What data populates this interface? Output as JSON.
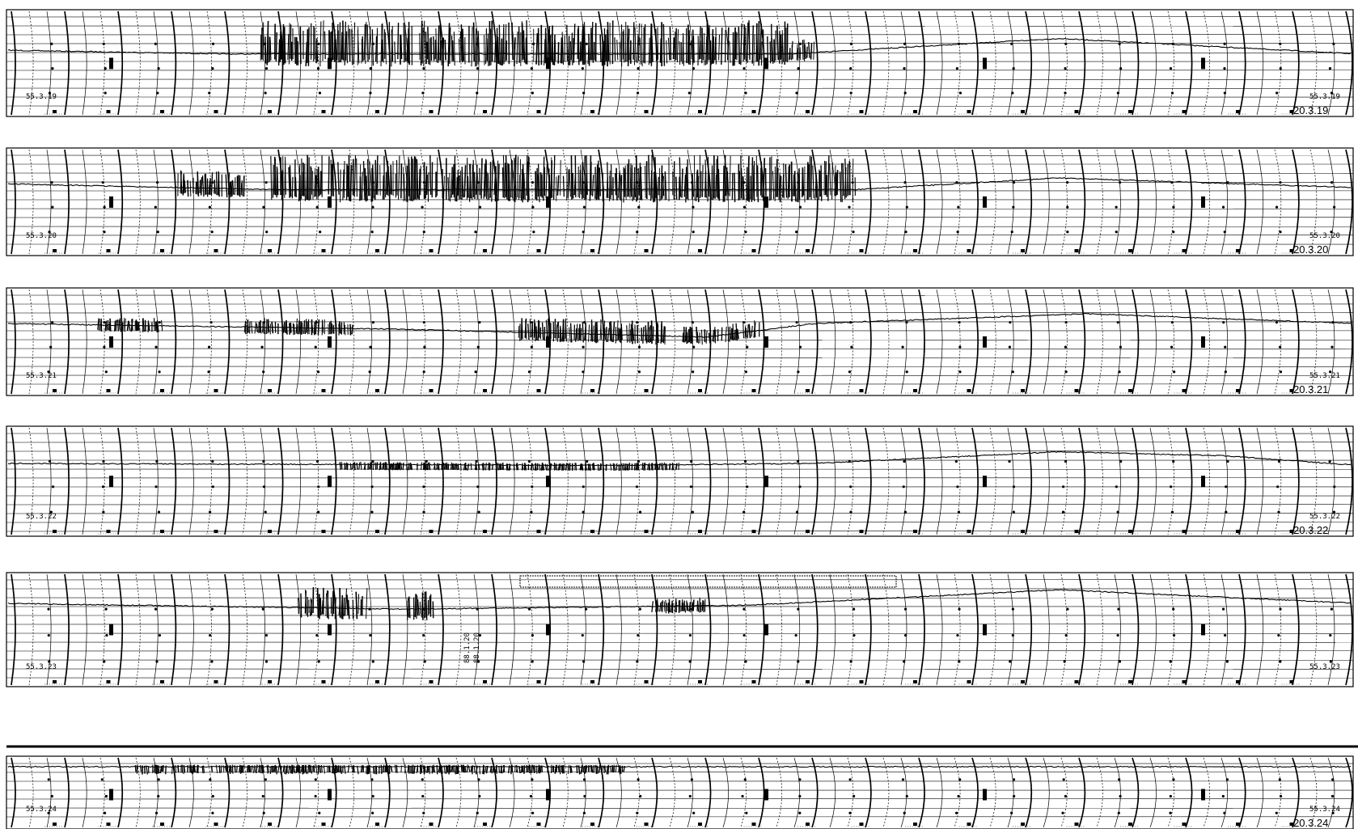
{
  "document": {
    "type": "seismograph drum recording (six strips)",
    "strips": [
      {
        "id": "strip-1",
        "left_label": "55.3.19",
        "right_label": "55.3.19",
        "stamp": "20.3.19",
        "activity": [
          [
            0.19,
            0.58,
            0.95
          ],
          [
            0.58,
            0.6,
            0.4
          ]
        ],
        "drift": [
          [
            0,
            0.0
          ],
          [
            0.17,
            0.1
          ],
          [
            0.58,
            0.1
          ],
          [
            0.78,
            -0.3
          ],
          [
            1,
            0.1
          ]
        ]
      },
      {
        "id": "strip-2",
        "left_label": "55.3.20",
        "right_label": "55.3.20",
        "stamp": "20.3.20",
        "activity": [
          [
            0.13,
            0.18,
            0.5
          ],
          [
            0.2,
            0.63,
            1.0
          ]
        ],
        "drift": [
          [
            0,
            -0.1
          ],
          [
            0.2,
            0.05
          ],
          [
            0.63,
            0.05
          ],
          [
            0.78,
            -0.25
          ],
          [
            1,
            0.0
          ]
        ]
      },
      {
        "id": "strip-3",
        "left_label": "55.3.21",
        "right_label": "55.3.21",
        "stamp": "20.3.21",
        "activity": [
          [
            0.07,
            0.12,
            0.25
          ],
          [
            0.18,
            0.26,
            0.3
          ],
          [
            0.38,
            0.49,
            0.5
          ],
          [
            0.5,
            0.56,
            0.35
          ]
        ],
        "drift": [
          [
            0,
            0.0
          ],
          [
            0.3,
            0.15
          ],
          [
            0.52,
            0.35
          ],
          [
            0.6,
            0.0
          ],
          [
            0.8,
            -0.25
          ],
          [
            1,
            0.0
          ]
        ]
      },
      {
        "id": "strip-4",
        "left_label": "55.3.22",
        "right_label": "55.3.22",
        "stamp": "20.3.22",
        "activity": [
          [
            0.25,
            0.5,
            0.08
          ]
        ],
        "drift": [
          [
            0,
            0.0
          ],
          [
            0.45,
            0.05
          ],
          [
            0.6,
            0.0
          ],
          [
            0.78,
            -0.3
          ],
          [
            0.9,
            -0.2
          ],
          [
            1,
            0.05
          ]
        ]
      },
      {
        "id": "strip-5",
        "left_label": "55.3.23",
        "right_label": "55.3.23",
        "stamp": "",
        "activity": [
          [
            0.22,
            0.27,
            0.8
          ],
          [
            0.3,
            0.32,
            0.8
          ],
          [
            0.48,
            0.52,
            0.3
          ]
        ],
        "drift": [
          [
            0,
            0.0
          ],
          [
            0.3,
            0.15
          ],
          [
            0.55,
            0.05
          ],
          [
            0.78,
            -0.35
          ],
          [
            1,
            0.0
          ]
        ]
      },
      {
        "id": "strip-6",
        "left_label": "55.3.24",
        "right_label": "55.3.24",
        "stamp": "20.3.24",
        "activity": [
          [
            0.1,
            0.46,
            0.35
          ]
        ],
        "drift": [
          [
            0,
            0.0
          ],
          [
            0.46,
            0.0
          ],
          [
            1,
            0.0
          ]
        ]
      }
    ],
    "margin_notes": [
      "88.1.20",
      "88.1.20"
    ]
  }
}
